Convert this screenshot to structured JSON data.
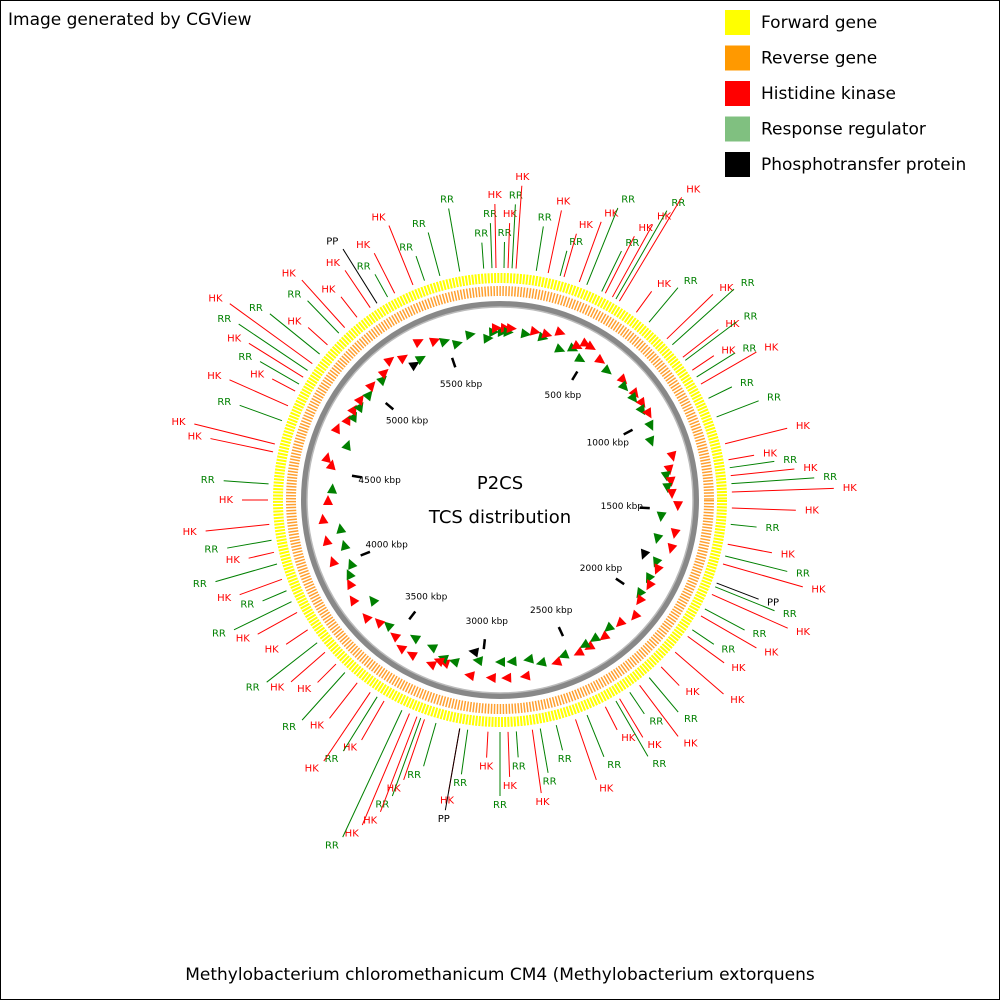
{
  "header": "Image generated by CGView",
  "legend": [
    {
      "name": "Forward gene",
      "color": "#ffff00"
    },
    {
      "name": "Reverse gene",
      "color": "#ff9900"
    },
    {
      "name": "Histidine kinase",
      "color": "#ff0000"
    },
    {
      "name": "Response regulator",
      "color": "#80c080"
    },
    {
      "name": "Phosphotransfer protein",
      "color": "#000000"
    }
  ],
  "chart_data": {
    "type": "genome-map",
    "title": "P2CS",
    "subtitle": "TCS distribution",
    "xlim": [
      0,
      5800
    ],
    "xticks": [
      {
        "value": 500,
        "label": "500 kbp"
      },
      {
        "value": 1000,
        "label": "1000 kbp"
      },
      {
        "value": 1500,
        "label": "1500 kbp"
      },
      {
        "value": 2000,
        "label": "2000 kbp"
      },
      {
        "value": 2500,
        "label": "2500 kbp"
      },
      {
        "value": 3000,
        "label": "3000 kbp"
      },
      {
        "value": 3500,
        "label": "3500 kbp"
      },
      {
        "value": 4000,
        "label": "4000 kbp"
      },
      {
        "value": 4500,
        "label": "4500 kbp"
      },
      {
        "value": 5000,
        "label": "5000 kbp"
      },
      {
        "value": 5500,
        "label": "5500 kbp"
      }
    ],
    "series": [
      {
        "label": "HK",
        "color": "#ff0000",
        "x": [
          5784,
          32,
          64,
          193,
          258,
          322,
          435,
          467,
          499,
          580,
          741,
          838,
          902,
          967,
          1224,
          1289,
          1353,
          1418,
          1482,
          1627,
          1708,
          1837,
          1933,
          2030,
          2110,
          2191,
          2304,
          2400,
          2465,
          2594,
          2771,
          2868,
          2948,
          3061,
          3206,
          3238,
          3270,
          3383,
          3448,
          3512,
          3625,
          3689,
          3802,
          3883,
          4028,
          4140,
          4253,
          4350,
          4543,
          4575,
          4736,
          4801,
          4865,
          4930,
          5026,
          5123,
          5187,
          5252,
          5365,
          5445
        ]
      },
      {
        "label": "RR",
        "color": "#008000",
        "x": [
          5768,
          16,
          48,
          145,
          242,
          354,
          419,
          483,
          644,
          773,
          854,
          934,
          1031,
          1112,
          1321,
          1385,
          1547,
          1675,
          1804,
          1901,
          1998,
          2255,
          2352,
          2417,
          2545,
          2674,
          2739,
          2835,
          2900,
          3029,
          3158,
          3222,
          3303,
          3415,
          3576,
          3738,
          3931,
          3979,
          4092,
          4189,
          4414,
          4672,
          4833,
          4897,
          4978,
          5091,
          5333,
          5494,
          5558,
          5639,
          5735
        ]
      },
      {
        "label": "PP",
        "color": "#000000",
        "x": [
          1788,
          3061,
          5284
        ]
      }
    ]
  },
  "caption": "Methylobacterium chloromethanicum CM4 (Methylobacterium extorquens"
}
